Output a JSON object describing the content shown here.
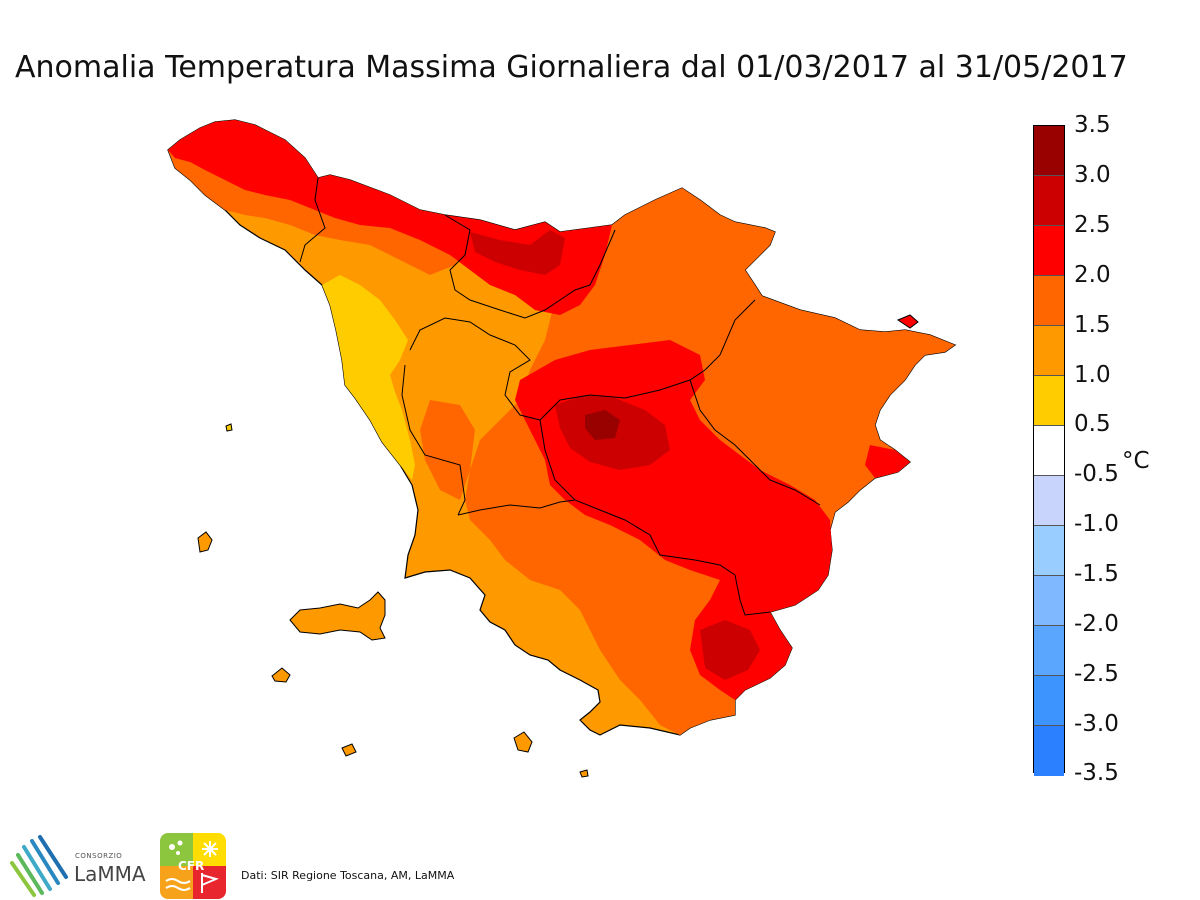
{
  "title": "Anomalia Temperatura Massima Giornaliera dal 01/03/2017 al 31/05/2017",
  "legend": {
    "unit": "°C",
    "ticks": [
      "3.5",
      "3.0",
      "2.5",
      "2.0",
      "1.5",
      "1.0",
      "0.5",
      "-0.5",
      "-1.0",
      "-1.5",
      "-2.0",
      "-2.5",
      "-3.0",
      "-3.5"
    ],
    "colors": [
      "#990000",
      "#cc0000",
      "#ff0000",
      "#ff6600",
      "#ff9900",
      "#ffcc00",
      "#ffffff",
      "#c8d4fc",
      "#99ccff",
      "#7fb8ff",
      "#5aa6ff",
      "#3d94ff",
      "#2a80ff"
    ]
  },
  "map_colors": {
    "yellow": "#ffcc00",
    "light_orange": "#ff9900",
    "orange": "#ff6600",
    "red": "#ff0000",
    "dark_red": "#cc0000",
    "darkest_red": "#990000"
  },
  "logos": {
    "lamma_consorzio": "CONSORZIO",
    "lamma_name": "LaMMA",
    "cfr_label": "CFR"
  },
  "credit": "Dati: SIR Regione Toscana, AM, LaMMA"
}
